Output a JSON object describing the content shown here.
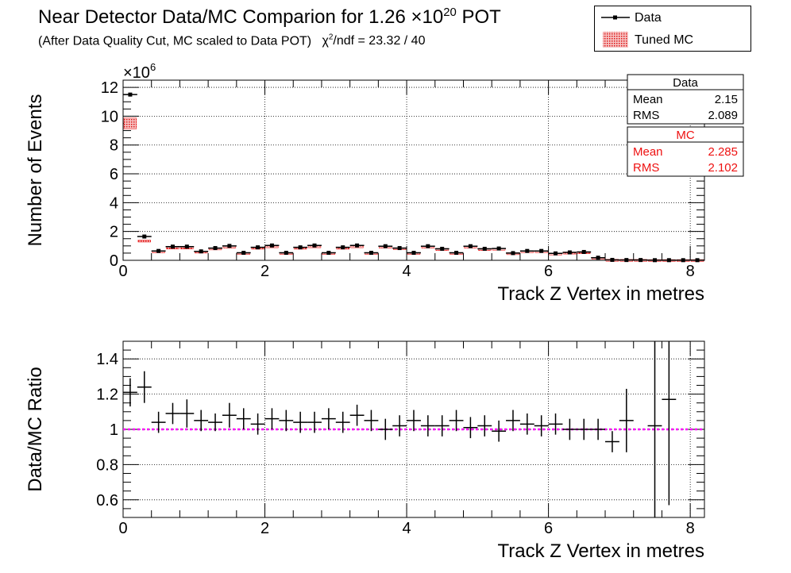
{
  "title": {
    "main_prefix": "Near Detector Data/MC Comparion for 1.26 ×10",
    "main_exp": "20",
    "main_suffix": " POT",
    "subtitle": "(After Data Quality Cut, MC scaled to Data POT)",
    "chi2_symbol": "χ",
    "chi2_exp": "2",
    "chi2_text": "/ndf = 23.32 / 40"
  },
  "legend": {
    "data_label": "Data",
    "mc_label": "Tuned MC"
  },
  "stats": {
    "data": {
      "title": "Data",
      "mean_label": "Mean",
      "mean": "2.15",
      "rms_label": "RMS",
      "rms": "2.089"
    },
    "mc": {
      "title": "MC",
      "mean_label": "Mean",
      "mean": "2.285",
      "rms_label": "RMS",
      "rms": "2.102"
    }
  },
  "colors": {
    "data": "#000000",
    "mc": "#ee1111",
    "ratio_line": "#ff00ff"
  },
  "chart_data": [
    {
      "type": "bar",
      "ylabel": "Number of Events",
      "xlabel": "Track Z Vertex in metres",
      "y_multiplier": "×10",
      "y_multiplier_exp": "6",
      "xlim": [
        0,
        8.2
      ],
      "ylim": [
        0,
        12.5
      ],
      "x_ticks": [
        "0",
        "2",
        "4",
        "6",
        "8"
      ],
      "y_ticks": [
        "0",
        "2",
        "4",
        "6",
        "8",
        "10",
        "12"
      ],
      "bin_width": 0.2,
      "x": [
        0.1,
        0.3,
        0.5,
        0.7,
        0.9,
        1.1,
        1.3,
        1.5,
        1.7,
        1.9,
        2.1,
        2.3,
        2.5,
        2.7,
        2.9,
        3.1,
        3.3,
        3.5,
        3.7,
        3.9,
        4.1,
        4.3,
        4.5,
        4.7,
        4.9,
        5.1,
        5.3,
        5.5,
        5.7,
        5.9,
        6.1,
        6.3,
        6.5,
        6.7,
        6.9,
        7.1,
        7.3,
        7.5,
        7.7,
        7.9,
        8.1
      ],
      "series": [
        {
          "name": "Data",
          "values": [
            11.5,
            1.65,
            0.65,
            0.95,
            0.95,
            0.62,
            0.85,
            1.0,
            0.52,
            0.9,
            1.03,
            0.52,
            0.9,
            1.03,
            0.52,
            0.9,
            1.03,
            0.52,
            0.98,
            0.85,
            0.52,
            0.98,
            0.8,
            0.52,
            0.98,
            0.8,
            0.82,
            0.5,
            0.65,
            0.65,
            0.48,
            0.55,
            0.58,
            0.18,
            0.03,
            0.02,
            0.02,
            0.01,
            0.01,
            0.01,
            0.01
          ]
        },
        {
          "name": "Tuned MC",
          "values": [
            9.5,
            1.35,
            0.62,
            0.88,
            0.88,
            0.6,
            0.82,
            0.95,
            0.5,
            0.87,
            0.97,
            0.5,
            0.87,
            0.97,
            0.5,
            0.87,
            0.97,
            0.5,
            0.95,
            0.83,
            0.5,
            0.95,
            0.78,
            0.5,
            0.95,
            0.78,
            0.8,
            0.49,
            0.63,
            0.63,
            0.47,
            0.53,
            0.56,
            0.17,
            0.03,
            0.02,
            0.02,
            0.01,
            0.01,
            0.01,
            0.01
          ]
        }
      ]
    },
    {
      "type": "scatter",
      "ylabel": "Data/MC Ratio",
      "xlabel": "Track Z Vertex in metres",
      "xlim": [
        0,
        8.2
      ],
      "ylim": [
        0.5,
        1.5
      ],
      "x_ticks": [
        "0",
        "2",
        "4",
        "6",
        "8"
      ],
      "y_ticks": [
        "0.6",
        "0.8",
        "1",
        "1.2",
        "1.4"
      ],
      "reference_line": 1.0,
      "x": [
        0.1,
        0.3,
        0.5,
        0.7,
        0.9,
        1.1,
        1.3,
        1.5,
        1.7,
        1.9,
        2.1,
        2.3,
        2.5,
        2.7,
        2.9,
        3.1,
        3.3,
        3.5,
        3.7,
        3.9,
        4.1,
        4.3,
        4.5,
        4.7,
        4.9,
        5.1,
        5.3,
        5.5,
        5.7,
        5.9,
        6.1,
        6.3,
        6.5,
        6.7,
        6.9,
        7.1,
        7.5,
        7.7
      ],
      "values": [
        1.21,
        1.24,
        1.04,
        1.09,
        1.09,
        1.05,
        1.04,
        1.08,
        1.06,
        1.03,
        1.06,
        1.05,
        1.04,
        1.04,
        1.06,
        1.04,
        1.08,
        1.05,
        1.0,
        1.02,
        1.05,
        1.02,
        1.02,
        1.05,
        1.01,
        1.02,
        0.99,
        1.05,
        1.03,
        1.02,
        1.03,
        1.0,
        1.0,
        1.0,
        0.93,
        1.05,
        1.02,
        1.17
      ],
      "errors": [
        0.08,
        0.09,
        0.06,
        0.06,
        0.08,
        0.06,
        0.05,
        0.07,
        0.06,
        0.06,
        0.06,
        0.06,
        0.06,
        0.06,
        0.06,
        0.06,
        0.06,
        0.06,
        0.06,
        0.06,
        0.06,
        0.06,
        0.06,
        0.06,
        0.06,
        0.06,
        0.06,
        0.06,
        0.06,
        0.06,
        0.06,
        0.06,
        0.06,
        0.06,
        0.06,
        0.18,
        0.6,
        0.6
      ]
    }
  ]
}
